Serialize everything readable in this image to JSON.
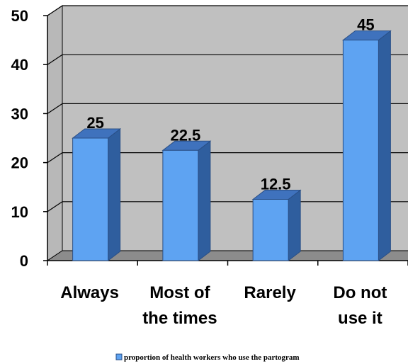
{
  "chart_data": {
    "type": "bar",
    "categories": [
      [
        "Always"
      ],
      [
        "Most of",
        "the times"
      ],
      [
        "Rarely"
      ],
      [
        "Do not",
        "use it"
      ]
    ],
    "series": [
      {
        "name": "proportion of health workers who use the partogram",
        "values": [
          25,
          22.5,
          12.5,
          45
        ],
        "value_labels": [
          "25",
          "22.5",
          "12.5",
          "45"
        ]
      }
    ],
    "ylim": [
      0,
      50
    ],
    "y_ticks": [
      "0",
      "10",
      "20",
      "30",
      "40",
      "50"
    ],
    "grid": true,
    "style": "3d-column",
    "legend": "bottom",
    "colors": {
      "bar_front": "#5ea3f2",
      "bar_side": "#2f5e9e",
      "bar_top": "#3f72bd",
      "bar_edge": "#2a4f86",
      "back_wall": "#c0c0c0",
      "floor": "#8c8c8c",
      "gridline": "#000000"
    }
  }
}
